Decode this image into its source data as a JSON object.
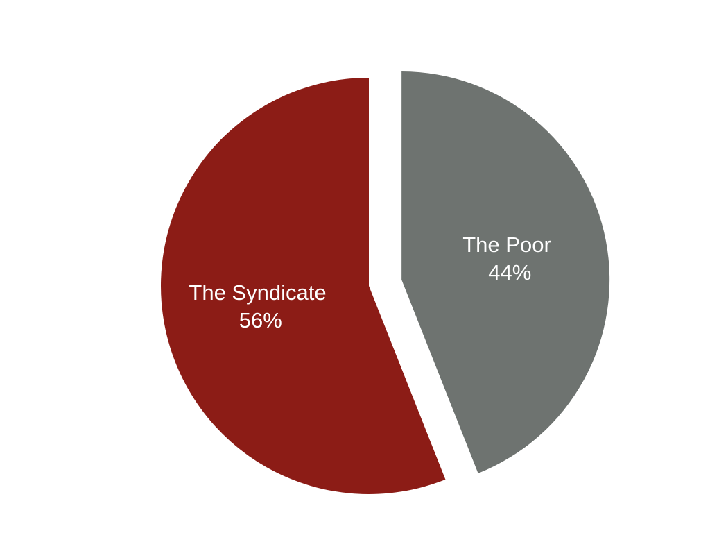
{
  "chart_data": {
    "type": "pie",
    "title": "",
    "slices": [
      {
        "name": "The Poor",
        "value": 44,
        "value_label": "44%",
        "color": "#6e7370",
        "exploded": true
      },
      {
        "name": "The Syndicate",
        "value": 56,
        "value_label": "56%",
        "color": "#8c1c16",
        "exploded": false
      }
    ],
    "start_angle": "12 o'clock",
    "direction": "clockwise",
    "legend": "none",
    "labels": "inside"
  }
}
